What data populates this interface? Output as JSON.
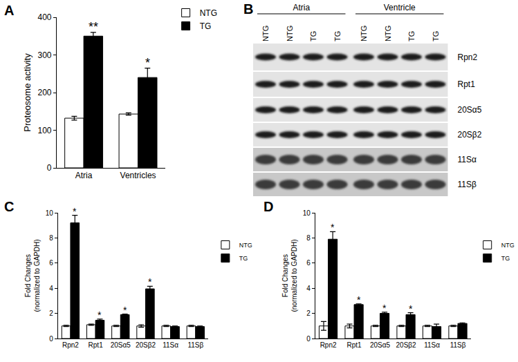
{
  "chart_data": [
    {
      "type": "bar",
      "panel_label": "A",
      "categories": [
        "Atria",
        "Ventricles"
      ],
      "y_label": "Proteosome activity",
      "series": [
        {
          "name": "NTG",
          "color": "#ffffff",
          "values": [
            132,
            143
          ],
          "errors": [
            5,
            3
          ]
        },
        {
          "name": "TG",
          "color": "#000000",
          "values": [
            350,
            240
          ],
          "errors": [
            10,
            25
          ]
        }
      ],
      "ylim": [
        0,
        400
      ],
      "yticks": [
        0,
        100,
        200,
        300,
        400
      ],
      "legend": "upper right",
      "grid": false,
      "annotations": [
        {
          "category": "Atria",
          "series": "TG",
          "text": "**"
        },
        {
          "category": "Ventricles",
          "series": "TG",
          "text": "*"
        }
      ]
    },
    {
      "type": "bar",
      "panel_label": "C",
      "categories": [
        "Rpn2",
        "Rpt1",
        "20Sα5",
        "20Sβ2",
        "11Sα",
        "11Sβ"
      ],
      "y_label": "Fold Changes\n(normalized to GAPDH)",
      "series": [
        {
          "name": "NTG",
          "color": "#ffffff",
          "values": [
            1.0,
            1.1,
            1.0,
            1.0,
            1.0,
            1.0
          ],
          "errors": [
            0.05,
            0.05,
            0.05,
            0.1,
            0.05,
            0.05
          ]
        },
        {
          "name": "TG",
          "color": "#000000",
          "values": [
            9.2,
            1.45,
            1.9,
            3.95,
            0.95,
            0.95
          ],
          "errors": [
            0.6,
            0.1,
            0.05,
            0.2,
            0.05,
            0.05
          ]
        }
      ],
      "ylim": [
        0,
        10
      ],
      "yticks": [
        0,
        2,
        4,
        6,
        8,
        10
      ],
      "legend": "upper right",
      "grid": false,
      "annotations": [
        {
          "category": "Rpn2",
          "series": "TG",
          "text": "*"
        },
        {
          "category": "Rpt1",
          "series": "TG",
          "text": "*"
        },
        {
          "category": "20Sα5",
          "series": "TG",
          "text": "*"
        },
        {
          "category": "20Sβ2",
          "series": "TG",
          "text": "*"
        }
      ]
    },
    {
      "type": "bar",
      "panel_label": "D",
      "categories": [
        "Rpn2",
        "Rpt1",
        "20Sα5",
        "20Sβ2",
        "11Sα",
        "11Sβ"
      ],
      "y_label": "Fold Changes\n(normalized to GAPDH)",
      "series": [
        {
          "name": "NTG",
          "color": "#ffffff",
          "values": [
            1.0,
            1.0,
            1.0,
            1.0,
            1.0,
            1.0
          ],
          "errors": [
            0.35,
            0.15,
            0.05,
            0.05,
            0.05,
            0.05
          ]
        },
        {
          "name": "TG",
          "color": "#000000",
          "values": [
            7.9,
            2.7,
            2.0,
            1.9,
            0.95,
            1.2
          ],
          "errors": [
            0.6,
            0.05,
            0.1,
            0.15,
            0.2,
            0.05
          ]
        }
      ],
      "ylim": [
        0,
        10
      ],
      "yticks": [
        0,
        2,
        4,
        6,
        8,
        10
      ],
      "legend": "upper right",
      "grid": false,
      "annotations": [
        {
          "category": "Rpn2",
          "series": "TG",
          "text": "*"
        },
        {
          "category": "Rpt1",
          "series": "TG",
          "text": "*"
        },
        {
          "category": "20Sα5",
          "series": "TG",
          "text": "*"
        },
        {
          "category": "20Sβ2",
          "series": "TG",
          "text": "*"
        }
      ]
    }
  ],
  "blot": {
    "panel_label": "B",
    "groups": [
      {
        "label": "Atria",
        "lanes": [
          "NTG",
          "NTG",
          "TG",
          "TG"
        ]
      },
      {
        "label": "Ventricle",
        "lanes": [
          "NTG",
          "NTG",
          "TG",
          "TG"
        ]
      }
    ],
    "rows": [
      "Rpn2",
      "Rpt1",
      "20Sα5",
      "20Sβ2",
      "11Sα",
      "11Sβ"
    ]
  }
}
